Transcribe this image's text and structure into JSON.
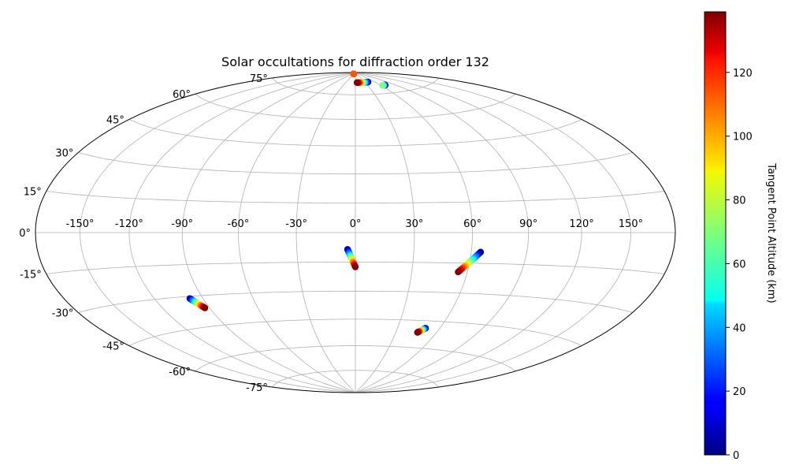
{
  "chart_data": {
    "type": "scatter",
    "projection": "hammer",
    "title": "Solar occultations for diffraction order 132",
    "grid": true,
    "lon_ticks": [
      -150,
      -120,
      -90,
      -60,
      -30,
      0,
      30,
      60,
      90,
      120,
      150
    ],
    "lon_tick_labels": [
      "-150°",
      "-120°",
      "-90°",
      "-60°",
      "-30°",
      "0°",
      "30°",
      "60°",
      "90°",
      "120°",
      "150°"
    ],
    "lat_ticks": [
      75,
      60,
      45,
      30,
      15,
      0,
      -15,
      -30,
      -45,
      -60,
      -75
    ],
    "lat_tick_labels": [
      "75°",
      "60°",
      "45°",
      "30°",
      "15°",
      "0°",
      "-15°",
      "-30°",
      "-45°",
      "-60°",
      "-75°"
    ],
    "colorbar": {
      "label": "Tangent Point Altitude (km)",
      "colormap": "jet",
      "range": [
        0,
        139
      ],
      "ticks": [
        0,
        20,
        40,
        60,
        80,
        100,
        120
      ],
      "tick_labels": [
        "0",
        "20",
        "40",
        "60",
        "80",
        "100",
        "120"
      ],
      "placement": "right"
    },
    "tracks": [
      {
        "lon_start": -36,
        "lat_start": 89,
        "alt_start": 130,
        "lon_end": -36,
        "lat_end": 89,
        "alt_end": 110
      },
      {
        "lon_start": 40,
        "lat_start": 83,
        "alt_start": 0,
        "lon_end": 5,
        "lat_end": 83,
        "alt_end": 139
      },
      {
        "lon_start": 70,
        "lat_start": 80,
        "alt_start": 0,
        "lon_end": 63,
        "lat_end": 80,
        "alt_end": 70
      },
      {
        "lon_start": -4,
        "lat_start": -8.5,
        "alt_start": 0,
        "lon_end": 0,
        "lat_end": -17.5,
        "alt_end": 139
      },
      {
        "lon_start": 65,
        "lat_start": -9.5,
        "alt_start": 0,
        "lon_end": 55,
        "lat_end": -19.5,
        "alt_end": 139
      },
      {
        "lon_start": -98,
        "lat_start": -31,
        "alt_start": 0,
        "lon_end": -93,
        "lat_end": -36,
        "alt_end": 139
      },
      {
        "lon_start": 50,
        "lat_start": -49,
        "alt_start": 0,
        "lon_end": 46,
        "lat_end": -51.5,
        "alt_end": 139
      }
    ]
  }
}
